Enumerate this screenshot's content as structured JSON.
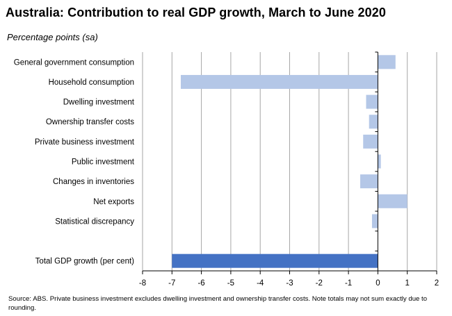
{
  "chart_data": {
    "type": "bar",
    "orientation": "horizontal",
    "title": "Australia:  Contribution  to real GDP growth, March  to June 2020",
    "subtitle": "Percentage points (sa)",
    "categories": [
      "General government consumption",
      "Household consumption",
      "Dwelling investment",
      "Ownership transfer costs",
      "Private business investment",
      "Public investment",
      "Changes in inventories",
      "Net exports",
      "Statistical discrepancy",
      "",
      "Total GDP growth (per cent)"
    ],
    "values": [
      0.6,
      -6.7,
      -0.4,
      -0.3,
      -0.5,
      0.1,
      -0.6,
      1.0,
      -0.2,
      null,
      -7.0
    ],
    "xlim": [
      -8,
      2
    ],
    "xticks": [
      "-8",
      "-7",
      "-6",
      "-5",
      "-4",
      "-3",
      "-2",
      "-1",
      "0",
      "1",
      "2"
    ],
    "grid": "vertical",
    "colors": {
      "component": "#b4c7e7",
      "total": "#4472c4",
      "grid": "#a6a6a6",
      "axis": "#000000"
    },
    "source": "Source: ABS. Private business investment excludes dwelling investment and ownership transfer costs.  Note totals may not sum exactly due to rounding."
  }
}
